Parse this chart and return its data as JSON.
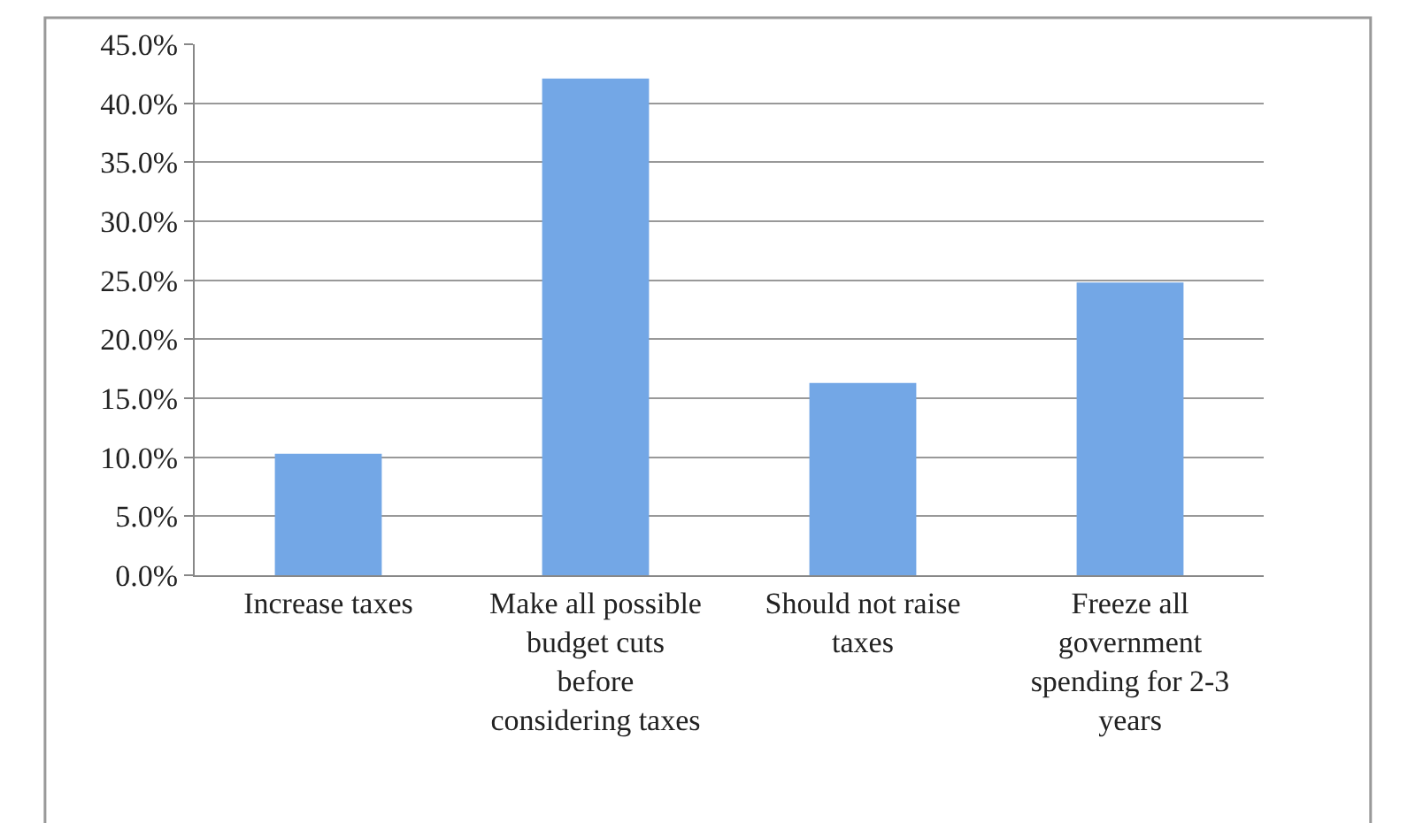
{
  "chart_data": {
    "type": "bar",
    "categories": [
      "Increase taxes",
      "Make all possible budget cuts before considering taxes",
      "Should not raise taxes",
      "Freeze all government spending for 2-3 years"
    ],
    "values": [
      10.3,
      42.1,
      16.3,
      24.8
    ],
    "color": "#73a7e6",
    "ylim": [
      0,
      45
    ],
    "yticks": [
      {
        "value": 0,
        "label": "0.0%"
      },
      {
        "value": 5,
        "label": "5.0%"
      },
      {
        "value": 10,
        "label": "10.0%"
      },
      {
        "value": 15,
        "label": "15.0%"
      },
      {
        "value": 20,
        "label": "20.0%"
      },
      {
        "value": 25,
        "label": "25.0%"
      },
      {
        "value": 30,
        "label": "30.0%"
      },
      {
        "value": 35,
        "label": "35.0%"
      },
      {
        "value": 40,
        "label": "40.0%"
      },
      {
        "value": 45,
        "label": "45.0%"
      }
    ],
    "grid": "y"
  }
}
